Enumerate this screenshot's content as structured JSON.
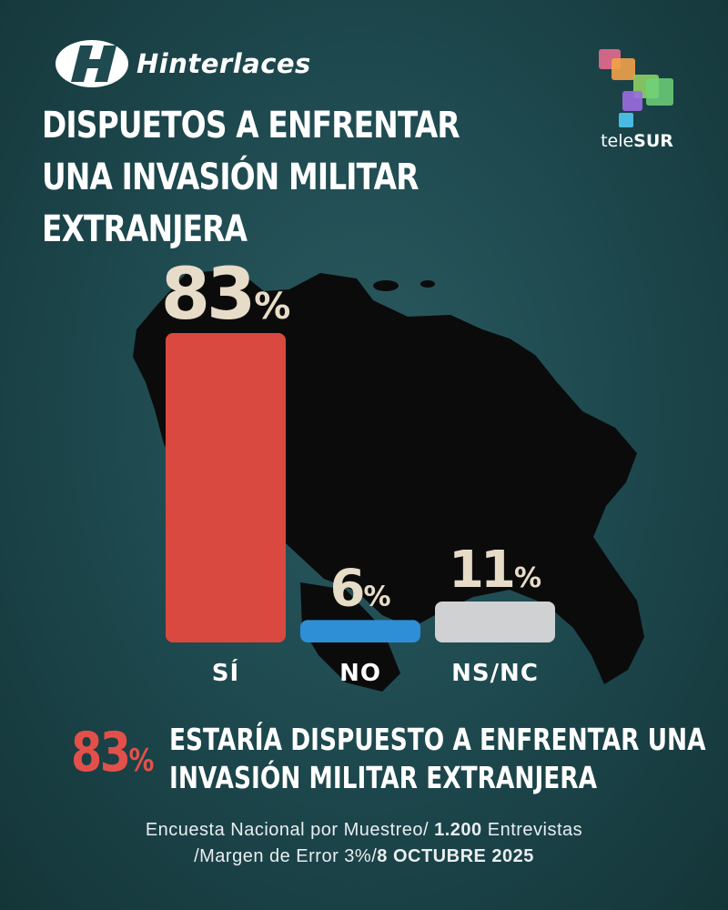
{
  "brand": {
    "name": "Hinterlaces",
    "logo_icon": "hinterlaces-h-logo-icon"
  },
  "broadcaster": {
    "name_prefix": "tele",
    "name_suffix": "SUR",
    "logo_icon": "telesur-squares-logo-icon"
  },
  "title": {
    "line1": "DISPUETOS A ENFRENTAR",
    "line2": "UNA INVASIÓN MILITAR",
    "line3": "EXTRANJERA"
  },
  "chart_data": {
    "type": "bar",
    "categories": [
      "SÍ",
      "NO",
      "NS/NC"
    ],
    "values": [
      83,
      6,
      11
    ],
    "value_labels": [
      "83",
      "6",
      "11"
    ],
    "unit": "%",
    "colors": [
      "#d9493f",
      "#2f8fd6",
      "#cfd1d3"
    ],
    "ylim": [
      0,
      100
    ],
    "grid": false,
    "title": "",
    "xlabel": "",
    "ylabel": ""
  },
  "summary": {
    "percent": "83",
    "unit": "%",
    "line1": "ESTARÍA DISPUESTO A ENFRENTAR UNA",
    "line2": "INVASIÓN MILITAR EXTRANJERA"
  },
  "footer": {
    "line1_a": "Encuesta Nacional por Muestreo/ ",
    "line1_b": "1.200",
    "line1_c": " Entrevistas",
    "line2_a": "/Margen de Error 3%/",
    "line2_b": "8 OCTUBRE 2025"
  },
  "colors": {
    "background": "#1e4a50",
    "label_beige": "#e7dcc8",
    "accent_red": "#e3504a"
  }
}
